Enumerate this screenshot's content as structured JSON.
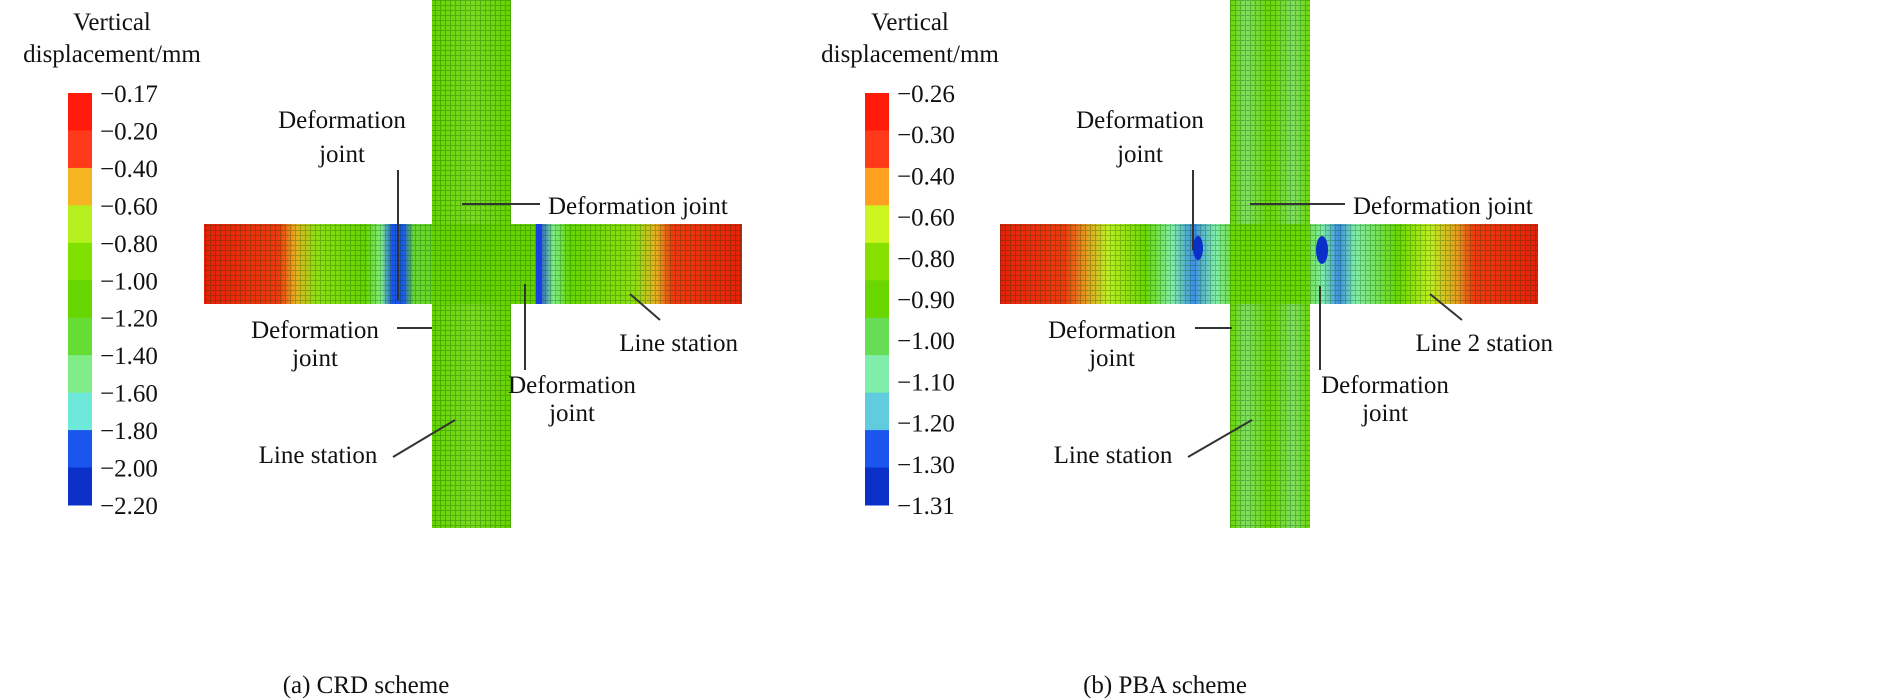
{
  "panels": [
    {
      "legend_title": [
        "Vertical",
        "displacement/mm"
      ],
      "legend_ticks": [
        "−0.17",
        "−0.20",
        "−0.40",
        "−0.60",
        "−0.80",
        "−1.00",
        "−1.20",
        "−1.40",
        "−1.60",
        "−1.80",
        "−2.00",
        "−2.20"
      ],
      "legend_colors": [
        "#ff1a0a",
        "#ff3a1a",
        "#f5b520",
        "#b6ef1e",
        "#80e000",
        "#66d600",
        "#66dd33",
        "#80ee88",
        "#6ee8d8",
        "#1a55ee",
        "#0a30c8"
      ],
      "labels": {
        "joint_top_left": [
          "Deformation",
          "joint"
        ],
        "joint_top_right": "Deformation joint",
        "joint_bottom_left": [
          "Deformation",
          "joint"
        ],
        "joint_bottom_mid": [
          "Deformation",
          "joint"
        ],
        "station_right": "Line station",
        "station_bottom": "Line station"
      },
      "caption": "(a) CRD scheme"
    },
    {
      "legend_title": [
        "Vertical",
        "displacement/mm"
      ],
      "legend_ticks": [
        "−0.26",
        "−0.30",
        "−0.40",
        "−0.60",
        "−0.80",
        "−0.90",
        "−1.00",
        "−1.10",
        "−1.20",
        "−1.30",
        "−1.31"
      ],
      "legend_colors": [
        "#ff1a0a",
        "#ff3a1a",
        "#ffa020",
        "#cdf520",
        "#88e000",
        "#6ad800",
        "#66dd55",
        "#80eeaa",
        "#60ccdd",
        "#1a55ee",
        "#0a30c8"
      ],
      "labels": {
        "joint_top_left": [
          "Deformation",
          "joint"
        ],
        "joint_top_right": "Deformation joint",
        "joint_bottom_left": [
          "Deformation",
          "joint"
        ],
        "joint_bottom_mid": [
          "Deformation",
          "joint"
        ],
        "station_right": "Line 2 station",
        "station_bottom": "Line station"
      },
      "caption": "(b) PBA scheme"
    }
  ]
}
